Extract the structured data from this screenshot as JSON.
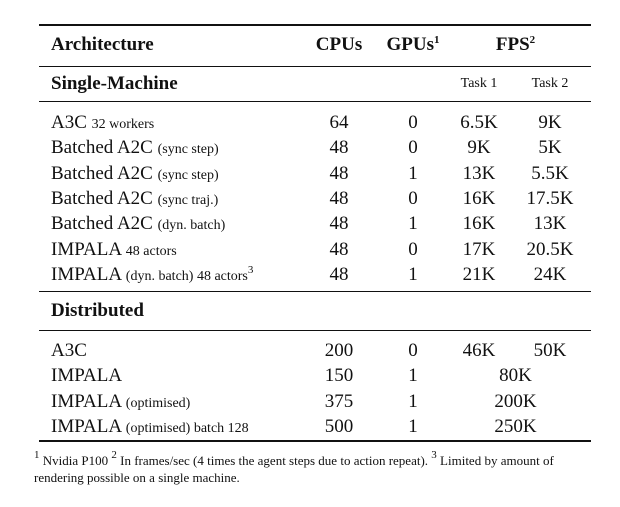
{
  "header": {
    "architecture": "Architecture",
    "cpus": "CPUs",
    "gpus": "GPUs",
    "gpus_sup": "1",
    "fps": "FPS",
    "fps_sup": "2",
    "task1": "Task 1",
    "task2": "Task 2"
  },
  "sections": {
    "single": "Single-Machine",
    "distributed": "Distributed"
  },
  "single_rows": [
    {
      "name": "A3C",
      "note": "32 workers",
      "cpus": "64",
      "gpus": "0",
      "task1": "6.5K",
      "task2": "9K"
    },
    {
      "name": "Batched A2C",
      "note": "(sync step)",
      "cpus": "48",
      "gpus": "0",
      "task1": "9K",
      "task2": "5K"
    },
    {
      "name": "Batched A2C",
      "note": "(sync step)",
      "cpus": "48",
      "gpus": "1",
      "task1": "13K",
      "task2": "5.5K"
    },
    {
      "name": "Batched A2C",
      "note": "(sync traj.)",
      "cpus": "48",
      "gpus": "0",
      "task1": "16K",
      "task2": "17.5K"
    },
    {
      "name": "Batched A2C",
      "note": "(dyn. batch)",
      "cpus": "48",
      "gpus": "1",
      "task1": "16K",
      "task2": "13K"
    },
    {
      "name": "IMPALA",
      "note": "48 actors",
      "cpus": "48",
      "gpus": "0",
      "task1": "17K",
      "task2": "20.5K"
    },
    {
      "name": "IMPALA",
      "note": "(dyn. batch) 48 actors",
      "note_sup": "3",
      "cpus": "48",
      "gpus": "1",
      "task1": "21K",
      "task2": "24K"
    }
  ],
  "distributed_rows": [
    {
      "name": "A3C",
      "note": "",
      "cpus": "200",
      "gpus": "0",
      "task1": "46K",
      "task2": "50K"
    },
    {
      "name": "IMPALA",
      "note": "",
      "cpus": "150",
      "gpus": "1",
      "fps_merged": "80K"
    },
    {
      "name": "IMPALA",
      "note": "(optimised)",
      "cpus": "375",
      "gpus": "1",
      "fps_merged": "200K"
    },
    {
      "name": "IMPALA",
      "note": "(optimised) batch 128",
      "cpus": "500",
      "gpus": "1",
      "fps_merged": "250K"
    }
  ],
  "footnote": {
    "sup1": "1",
    "text1": "Nvidia P100",
    "sup2": "2",
    "text2": "In frames/sec (4 times the agent steps due to action repeat).",
    "sup3": "3",
    "text3": "Limited by amount of rendering possible on a single machine."
  }
}
